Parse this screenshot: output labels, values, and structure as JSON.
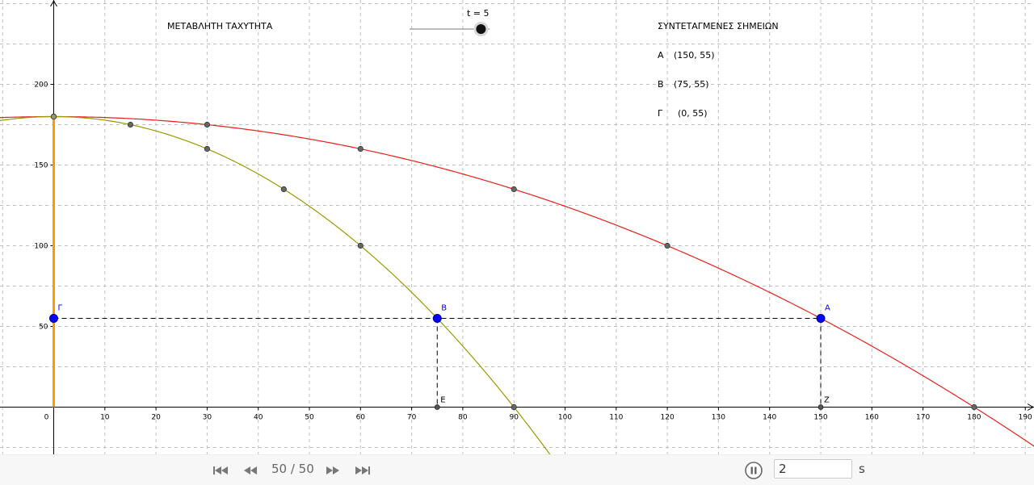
{
  "labels": {
    "variable_speed_title": "ΜΕΤΑΒΛΗΤΗ ΤΑΧΥΤΗΤΑ",
    "slider_label": "t = 5",
    "coords_title": "ΣΥΝΤΕΤΑΓΜΕΝΕΣ ΣΗΜΕΙΩΝ",
    "coord_rows": [
      {
        "name": "A",
        "value": "(150, 55)"
      },
      {
        "name": "B",
        "value": "(75, 55)"
      },
      {
        "name": "Γ",
        "value": "(0, 55)"
      }
    ]
  },
  "slider": {
    "value": 5,
    "min": 0,
    "max": 5.6
  },
  "axes": {
    "xlim": [
      -10,
      192
    ],
    "ylim": [
      -30,
      251
    ],
    "x_ticks": [
      0,
      10,
      20,
      30,
      40,
      50,
      60,
      70,
      80,
      90,
      100,
      110,
      120,
      130,
      140,
      150,
      160,
      170,
      180,
      190
    ],
    "y_ticks": [
      50,
      100,
      150,
      200
    ],
    "grid": true
  },
  "curves": {
    "peak_height": 180,
    "red": {
      "color": "#e8201c",
      "x_at_ground": 180,
      "marked_x": [
        0,
        30,
        60,
        90,
        120,
        180
      ]
    },
    "olive": {
      "color": "#999900",
      "x_at_ground": 90,
      "marked_x": [
        0,
        15,
        30,
        45,
        60,
        90
      ]
    }
  },
  "points": [
    {
      "name": "A",
      "x": 150,
      "y": 55
    },
    {
      "name": "B",
      "x": 75,
      "y": 55
    },
    {
      "name": "Γ",
      "x": 0,
      "y": 55
    }
  ],
  "foot_points": [
    {
      "name": "Z",
      "x": 150,
      "y": 0
    },
    {
      "name": "E",
      "x": 75,
      "y": 0
    }
  ],
  "colors": {
    "point_blue": "#0000ff",
    "pole": "#ff9900",
    "grid": "#c0c0c0"
  },
  "animation": {
    "counter": "50 / 50",
    "time_value": "2",
    "time_unit": "s",
    "icons": [
      "skip-first-icon",
      "step-back-icon",
      "step-forward-icon",
      "skip-last-icon",
      "pause-icon"
    ]
  }
}
